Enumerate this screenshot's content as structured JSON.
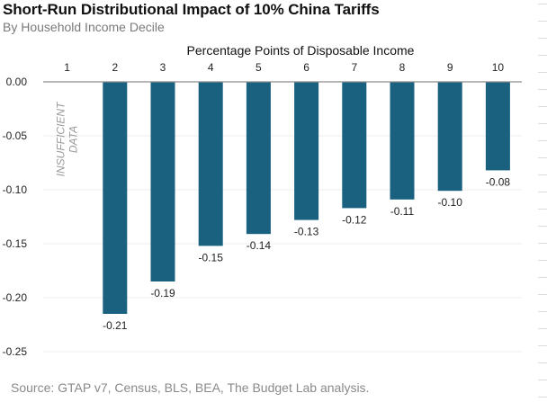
{
  "title": "Short-Run Distributional Impact of 10% China Tariffs",
  "subtitle": "By Household Income Decile",
  "source": "Source: GTAP v7, Census, BLS, BEA, The Budget Lab analysis.",
  "colors": {
    "bar": "#1a6180",
    "axis": "#8c8c8c",
    "grid": "#ececec",
    "annotation": "#9a9a9a"
  },
  "chart_data": {
    "type": "bar",
    "title": "Short-Run Distributional Impact of 10% China Tariffs",
    "subtitle": "By Household Income Decile",
    "xlabel": "Percentage Points of Disposable Income",
    "ylabel": "",
    "x_axis_position": "top",
    "categories": [
      "1",
      "2",
      "3",
      "4",
      "5",
      "6",
      "7",
      "8",
      "9",
      "10"
    ],
    "values": [
      null,
      -0.215,
      -0.185,
      -0.152,
      -0.141,
      -0.128,
      -0.117,
      -0.109,
      -0.101,
      -0.082
    ],
    "data_labels": [
      "",
      "-0.21",
      "-0.19",
      "-0.15",
      "-0.14",
      "-0.13",
      "-0.12",
      "-0.11",
      "-0.10",
      "-0.08"
    ],
    "ylim": [
      -0.25,
      0
    ],
    "yticks": [
      0,
      -0.05,
      -0.1,
      -0.15,
      -0.2,
      -0.25
    ],
    "ytick_labels": [
      "0.00",
      "-0.05",
      "-0.10",
      "-0.15",
      "-0.20",
      "-0.25"
    ],
    "grid": true,
    "legend": "none",
    "annotations": [
      {
        "category": "1",
        "lines": [
          "INSUFFICIENT",
          "DATA"
        ],
        "rotation": "vertical"
      }
    ]
  }
}
